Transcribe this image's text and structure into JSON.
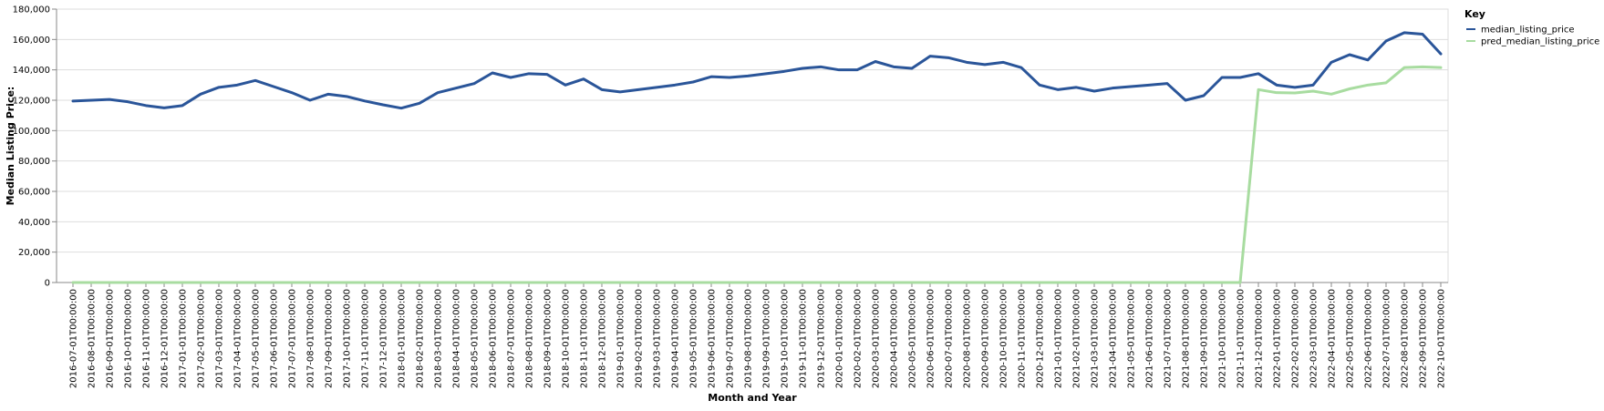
{
  "chart_data": {
    "type": "line",
    "xlabel": "Month and Year",
    "ylabel": "Median Listing Price:",
    "ylim": [
      0,
      180000
    ],
    "yticks": [
      "0",
      "20,000",
      "40,000",
      "60,000",
      "80,000",
      "100,000",
      "120,000",
      "140,000",
      "160,000",
      "180,000"
    ],
    "grid": "horizontal",
    "legend": {
      "title": "Key",
      "placement": "top-right"
    },
    "x": [
      "2016-07-01T00:00:00",
      "2016-08-01T00:00:00",
      "2016-09-01T00:00:00",
      "2016-10-01T00:00:00",
      "2016-11-01T00:00:00",
      "2016-12-01T00:00:00",
      "2017-01-01T00:00:00",
      "2017-02-01T00:00:00",
      "2017-03-01T00:00:00",
      "2017-04-01T00:00:00",
      "2017-05-01T00:00:00",
      "2017-06-01T00:00:00",
      "2017-07-01T00:00:00",
      "2017-08-01T00:00:00",
      "2017-09-01T00:00:00",
      "2017-10-01T00:00:00",
      "2017-11-01T00:00:00",
      "2017-12-01T00:00:00",
      "2018-01-01T00:00:00",
      "2018-02-01T00:00:00",
      "2018-03-01T00:00:00",
      "2018-04-01T00:00:00",
      "2018-05-01T00:00:00",
      "2018-06-01T00:00:00",
      "2018-07-01T00:00:00",
      "2018-08-01T00:00:00",
      "2018-09-01T00:00:00",
      "2018-10-01T00:00:00",
      "2018-11-01T00:00:00",
      "2018-12-01T00:00:00",
      "2019-01-01T00:00:00",
      "2019-02-01T00:00:00",
      "2019-03-01T00:00:00",
      "2019-04-01T00:00:00",
      "2019-05-01T00:00:00",
      "2019-06-01T00:00:00",
      "2019-07-01T00:00:00",
      "2019-08-01T00:00:00",
      "2019-09-01T00:00:00",
      "2019-10-01T00:00:00",
      "2019-11-01T00:00:00",
      "2019-12-01T00:00:00",
      "2020-01-01T00:00:00",
      "2020-02-01T00:00:00",
      "2020-03-01T00:00:00",
      "2020-04-01T00:00:00",
      "2020-05-01T00:00:00",
      "2020-06-01T00:00:00",
      "2020-07-01T00:00:00",
      "2020-08-01T00:00:00",
      "2020-09-01T00:00:00",
      "2020-10-01T00:00:00",
      "2020-11-01T00:00:00",
      "2020-12-01T00:00:00",
      "2021-01-01T00:00:00",
      "2021-02-01T00:00:00",
      "2021-03-01T00:00:00",
      "2021-04-01T00:00:00",
      "2021-05-01T00:00:00",
      "2021-06-01T00:00:00",
      "2021-07-01T00:00:00",
      "2021-08-01T00:00:00",
      "2021-09-01T00:00:00",
      "2021-10-01T00:00:00",
      "2021-11-01T00:00:00",
      "2021-12-01T00:00:00",
      "2022-01-01T00:00:00",
      "2022-02-01T00:00:00",
      "2022-03-01T00:00:00",
      "2022-04-01T00:00:00",
      "2022-05-01T00:00:00",
      "2022-06-01T00:00:00",
      "2022-07-01T00:00:00",
      "2022-08-01T00:00:00",
      "2022-09-01T00:00:00",
      "2022-10-01T00:00:00"
    ],
    "series": [
      {
        "name": "median_listing_price",
        "color": "#2a5599",
        "values": [
          119500,
          120000,
          120500,
          119000,
          116500,
          115000,
          116500,
          124000,
          128500,
          130000,
          133000,
          129000,
          125000,
          120000,
          124000,
          122500,
          119500,
          117000,
          114800,
          118000,
          125000,
          128000,
          131000,
          138000,
          135000,
          137500,
          137000,
          130000,
          134000,
          127000,
          125500,
          127000,
          128500,
          130000,
          132000,
          135500,
          135000,
          136000,
          137500,
          139000,
          141000,
          142000,
          140000,
          140000,
          145500,
          142000,
          141000,
          149000,
          148000,
          145000,
          143500,
          145000,
          141500,
          130000,
          127000,
          128500,
          126000,
          128000,
          129000,
          130000,
          131000,
          120000,
          123000,
          135000,
          135000,
          137500,
          130000,
          128500,
          130000,
          145000,
          150000,
          146500,
          159000,
          164500,
          163500,
          150500
        ]
      },
      {
        "name": "pred_median_listing_price",
        "color": "#a8dca0",
        "values": [
          0,
          0,
          0,
          0,
          0,
          0,
          0,
          0,
          0,
          0,
          0,
          0,
          0,
          0,
          0,
          0,
          0,
          0,
          0,
          0,
          0,
          0,
          0,
          0,
          0,
          0,
          0,
          0,
          0,
          0,
          0,
          0,
          0,
          0,
          0,
          0,
          0,
          0,
          0,
          0,
          0,
          0,
          0,
          0,
          0,
          0,
          0,
          0,
          0,
          0,
          0,
          0,
          0,
          0,
          0,
          0,
          0,
          0,
          0,
          0,
          0,
          0,
          0,
          0,
          0,
          127000,
          125000,
          124800,
          126000,
          124000,
          127500,
          130000,
          131500,
          141500,
          142000,
          141500
        ]
      }
    ]
  }
}
